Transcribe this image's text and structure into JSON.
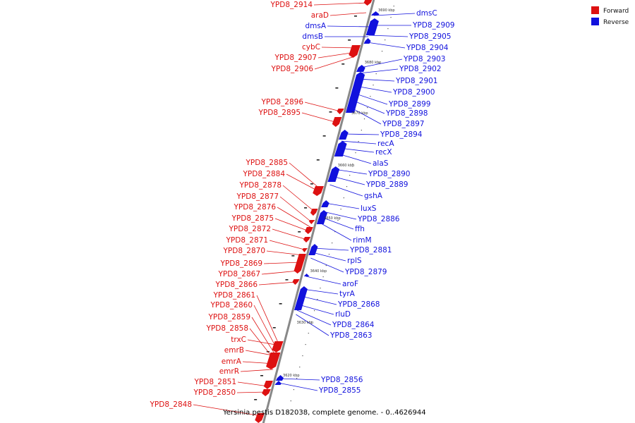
{
  "caption": "Yersinia pestis D182038, complete genome. - 0..4626944",
  "colors": {
    "forward": "#dd1111",
    "reverse": "#1111dd",
    "backbone": "#888888"
  },
  "legend": [
    {
      "label": "Forward",
      "color": "#dd1111"
    },
    {
      "label": "Reverse",
      "color": "#1111dd"
    }
  ],
  "scale_labels": [
    "3690 kbp",
    "3680 kbp",
    "3670 kbp",
    "3660 kbp",
    "3650 kbp",
    "3640 kbp",
    "3630 kbp",
    "3620 kbp"
  ],
  "forward_genes": [
    "YPD8_2914",
    "YPD8_2907",
    "YPD8_2906",
    "YPD8_2896",
    "YPD8_2895",
    "YPD8_2885",
    "YPD8_2884",
    "YPD8_2878",
    "YPD8_2877",
    "YPD8_2876",
    "YPD8_2875",
    "YPD8_2872",
    "YPD8_2871",
    "YPD8_2870",
    "YPD8_2869",
    "YPD8_2867",
    "YPD8_2866",
    "YPD8_2861",
    "YPD8_2860",
    "YPD8_2859",
    "YPD8_2858",
    "YPD8_2851",
    "YPD8_2850",
    "YPD8_2848"
  ],
  "reverse_genes": [
    "YPD8_2909",
    "YPD8_2905",
    "YPD8_2904",
    "YPD8_2903",
    "YPD8_2902",
    "YPD8_2901",
    "YPD8_2900",
    "YPD8_2899",
    "YPD8_2898",
    "YPD8_2897",
    "YPD8_2894",
    "YPD8_2890",
    "YPD8_2889",
    "YPD8_2886",
    "YPD8_2881",
    "YPD8_2879",
    "YPD8_2868",
    "YPD8_2864",
    "YPD8_2863",
    "YPD8_2856",
    "YPD8_2855"
  ],
  "other_genes": [
    "dmsC",
    "araD",
    "dmsA",
    "dmsB",
    "cybC",
    "recA",
    "recX",
    "alaS",
    "gshA",
    "luxS",
    "ffh",
    "rimM",
    "rplS",
    "aroF",
    "tyrA",
    "rluD",
    "trxC",
    "emrB",
    "emrA",
    "emrR"
  ]
}
